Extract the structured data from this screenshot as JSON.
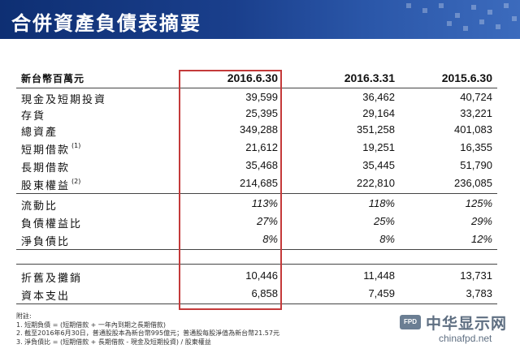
{
  "title": "合併資產負債表摘要",
  "header": {
    "unit_label": "新台幣百萬元",
    "columns": [
      "2016.6.30",
      "2016.3.31",
      "2015.6.30"
    ]
  },
  "rows": [
    {
      "label": "現金及短期投資",
      "note": "",
      "values": [
        "39,599",
        "36,462",
        "40,724"
      ]
    },
    {
      "label": "存貨",
      "note": "",
      "values": [
        "25,395",
        "29,164",
        "33,221"
      ]
    },
    {
      "label": "總資產",
      "note": "",
      "values": [
        "349,288",
        "351,258",
        "401,083"
      ]
    },
    {
      "label": "短期借款",
      "note": "(1)",
      "values": [
        "21,612",
        "19,251",
        "16,355"
      ]
    },
    {
      "label": "長期借款",
      "note": "",
      "values": [
        "35,468",
        "35,445",
        "51,790"
      ]
    },
    {
      "label": "股東權益",
      "note": "(2)",
      "values": [
        "214,685",
        "222,810",
        "236,085"
      ]
    }
  ],
  "ratios": [
    {
      "label": "流動比",
      "values": [
        "113%",
        "118%",
        "125%"
      ]
    },
    {
      "label": "負債權益比",
      "values": [
        "27%",
        "25%",
        "29%"
      ]
    },
    {
      "label": "淨負債比",
      "values": [
        "8%",
        "8%",
        "12%"
      ]
    }
  ],
  "cashflow": [
    {
      "label": "折舊及攤銷",
      "values": [
        "10,446",
        "11,448",
        "13,731"
      ]
    },
    {
      "label": "資本支出",
      "values": [
        "6,858",
        "7,459",
        "3,783"
      ]
    }
  ],
  "notes": {
    "heading": "附註:",
    "items": [
      "1.   短期負債 = (短期借款 + 一年內到期之長期借款)",
      "2.   截至2016年6月30日，普通股股本為新台幣995億元；普通股每股淨值為新台幣21.57元",
      "3.   淨負債比 = (短期借款 + 長期借款 - 現金及短期投資) / 股東權益"
    ]
  },
  "watermark": {
    "logo": "FPD",
    "text": "中华显示网",
    "url": "chinafpd.net"
  },
  "colors": {
    "header_bg": "#1a3f8c",
    "highlight_border": "#c43a3a"
  }
}
